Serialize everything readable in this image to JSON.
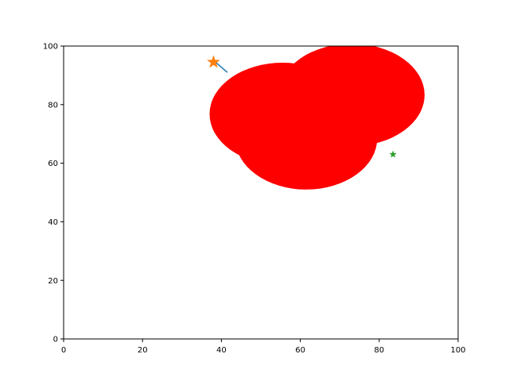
{
  "chart_data": {
    "type": "scatter",
    "title": "",
    "xlabel": "",
    "ylabel": "",
    "xlim": [
      0,
      100
    ],
    "ylim": [
      0,
      100
    ],
    "grid": false,
    "xticks": [
      "0",
      "20",
      "40",
      "60",
      "80",
      "100"
    ],
    "yticks": [
      "0",
      "20",
      "40",
      "60",
      "80",
      "100"
    ],
    "ellipses": [
      {
        "cx": 61.5,
        "cy": 68.5,
        "rx": 18.0,
        "ry": 17.5,
        "color": "#ff0000"
      },
      {
        "cx": 55.5,
        "cy": 76.8,
        "rx": 18.5,
        "ry": 17.5,
        "color": "#ff0000"
      },
      {
        "cx": 73.0,
        "cy": 83.3,
        "rx": 18.5,
        "ry": 17.5,
        "color": "#ff0000"
      }
    ],
    "line": {
      "points": [
        [
          38.5,
          94.5
        ],
        [
          41.5,
          91.0
        ]
      ],
      "color": "#1f77b4"
    },
    "markers": [
      {
        "x": 38.0,
        "y": 94.5,
        "shape": "star",
        "size": "large",
        "color": "#ff7f0e"
      },
      {
        "x": 83.5,
        "y": 63.0,
        "shape": "star",
        "size": "small",
        "color": "#2ca02c"
      }
    ]
  }
}
